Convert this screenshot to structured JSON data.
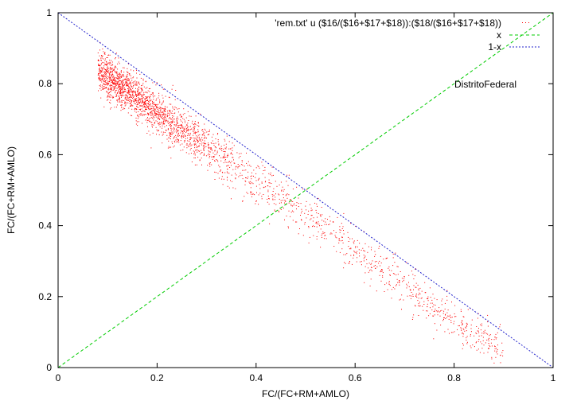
{
  "chart_data": {
    "type": "scatter",
    "title": "",
    "xlabel": "FC/(FC+RM+AMLO)",
    "ylabel": "FC/(FC+RM+AMLO)",
    "xlim": [
      0,
      1
    ],
    "ylim": [
      0,
      1
    ],
    "x_ticks": [
      "0",
      "0.2",
      "0.4",
      "0.6",
      "0.8",
      "1"
    ],
    "y_ticks": [
      "0",
      "0.2",
      "0.4",
      "0.6",
      "0.8",
      "1"
    ],
    "grid": false,
    "legend_position": "top-right",
    "annotation": "DistritoFederal",
    "series": [
      {
        "name": "'rem.txt' u ($16/($16+$17+$18)):($18/($16+$17+$18))",
        "style": "points",
        "color": "#ff0000",
        "approx_trend": {
          "x": [
            0.08,
            0.2,
            0.3,
            0.4,
            0.5,
            0.6,
            0.7,
            0.8,
            0.9
          ],
          "y": [
            0.84,
            0.72,
            0.62,
            0.52,
            0.43,
            0.33,
            0.23,
            0.13,
            0.05
          ]
        },
        "spread": 0.03
      },
      {
        "name": "x",
        "style": "dashed",
        "color": "#00cc00",
        "x": [
          0,
          1
        ],
        "y": [
          0,
          1
        ]
      },
      {
        "name": "1-x",
        "style": "dashed",
        "color": "#2222cc",
        "x": [
          0,
          1
        ],
        "y": [
          1,
          0
        ]
      }
    ]
  }
}
